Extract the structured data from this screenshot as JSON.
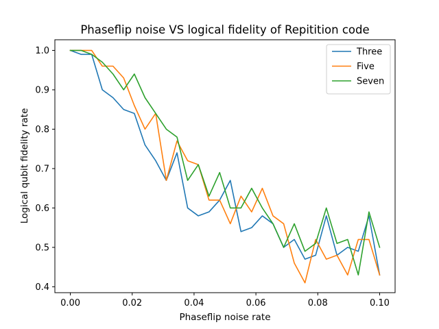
{
  "chart_data": {
    "type": "line",
    "title": "Phaseflip noise VS logical fidelity of Repitition code",
    "xlabel": "Phaseflip noise rate",
    "ylabel": "Logical qubit fidelity rate",
    "xlim": [
      -0.005,
      0.105
    ],
    "ylim": [
      0.385,
      1.027
    ],
    "xticks": [
      0.0,
      0.02,
      0.04,
      0.06,
      0.08,
      0.1
    ],
    "xtick_labels": [
      "0.00",
      "0.02",
      "0.04",
      "0.06",
      "0.08",
      "0.10"
    ],
    "yticks": [
      0.4,
      0.5,
      0.6,
      0.7,
      0.8,
      0.9,
      1.0
    ],
    "ytick_labels": [
      "0.4",
      "0.5",
      "0.6",
      "0.7",
      "0.8",
      "0.9",
      "1.0"
    ],
    "grid": false,
    "legend_position": "top-right",
    "x": [
      0.0,
      0.00345,
      0.0069,
      0.01034,
      0.01379,
      0.01724,
      0.02069,
      0.02414,
      0.02759,
      0.03103,
      0.03448,
      0.03793,
      0.04138,
      0.04483,
      0.04828,
      0.05172,
      0.05517,
      0.05862,
      0.06207,
      0.06552,
      0.06897,
      0.07241,
      0.07586,
      0.07931,
      0.08276,
      0.08621,
      0.08966,
      0.0931,
      0.09655,
      0.1
    ],
    "series": [
      {
        "name": "Three",
        "color": "#1f77b4",
        "values": [
          1.0,
          0.99,
          0.99,
          0.9,
          0.88,
          0.85,
          0.84,
          0.76,
          0.72,
          0.67,
          0.74,
          0.6,
          0.58,
          0.59,
          0.62,
          0.67,
          0.54,
          0.55,
          0.58,
          0.56,
          0.5,
          0.52,
          0.47,
          0.48,
          0.58,
          0.48,
          0.5,
          0.49,
          0.58,
          0.43
        ]
      },
      {
        "name": "Five",
        "color": "#ff7f0e",
        "values": [
          1.0,
          1.0,
          1.0,
          0.96,
          0.96,
          0.93,
          0.86,
          0.8,
          0.84,
          0.67,
          0.77,
          0.72,
          0.71,
          0.62,
          0.62,
          0.56,
          0.63,
          0.59,
          0.65,
          0.58,
          0.56,
          0.46,
          0.41,
          0.52,
          0.47,
          0.48,
          0.43,
          0.52,
          0.52,
          0.43
        ]
      },
      {
        "name": "Seven",
        "color": "#2ca02c",
        "values": [
          1.0,
          1.0,
          0.99,
          0.97,
          0.94,
          0.9,
          0.94,
          0.88,
          0.84,
          0.8,
          0.78,
          0.67,
          0.71,
          0.63,
          0.69,
          0.6,
          0.6,
          0.65,
          0.6,
          0.56,
          0.5,
          0.56,
          0.49,
          0.51,
          0.6,
          0.51,
          0.52,
          0.43,
          0.59,
          0.5
        ]
      }
    ]
  }
}
